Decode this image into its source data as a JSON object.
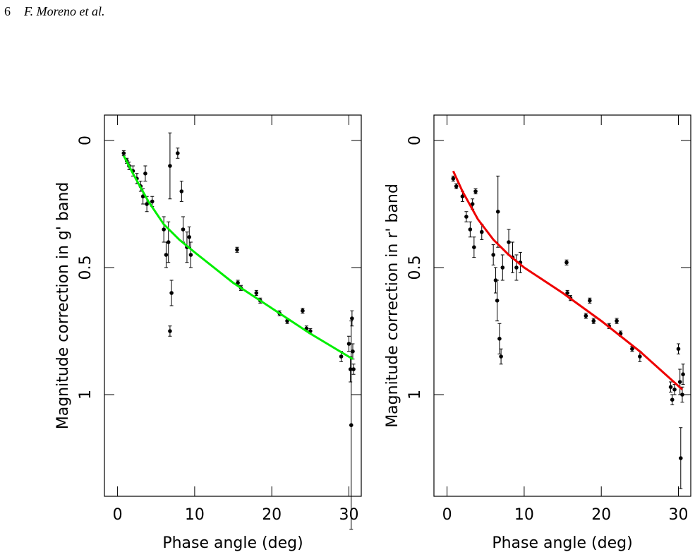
{
  "header": {
    "page_number": "6",
    "authors": "F. Moreno et al."
  },
  "chart_data": [
    {
      "type": "scatter",
      "xlabel": "Phase angle (deg)",
      "ylabel": "Magnitude correction in g' band",
      "xlim": [
        -1.7,
        31.6
      ],
      "ylim": [
        -0.1,
        1.4
      ],
      "y_inverted": true,
      "xticks": [
        0,
        10,
        20,
        30
      ],
      "yticks": [
        0,
        0.5,
        1
      ],
      "series": [
        {
          "style": "errorbar",
          "color": "#000000",
          "x": [
            0.8,
            1.2,
            1.5,
            2.0,
            2.5,
            3.0,
            3.3,
            3.6,
            3.8,
            4.5,
            6.0,
            6.3,
            6.6,
            6.8,
            7.0,
            6.8,
            7.8,
            8.3,
            8.5,
            9.0,
            9.3,
            9.5,
            15.5,
            15.6,
            16.0,
            18.0,
            18.5,
            21.0,
            22.0,
            24.0,
            24.5,
            25.0,
            29.0,
            30.0,
            30.2,
            30.3,
            30.5,
            30.6,
            30.4
          ],
          "values": [
            0.05,
            0.08,
            0.1,
            0.12,
            0.15,
            0.18,
            0.22,
            0.13,
            0.25,
            0.24,
            0.35,
            0.45,
            0.4,
            0.1,
            0.6,
            0.75,
            0.05,
            0.2,
            0.35,
            0.42,
            0.38,
            0.45,
            0.43,
            0.56,
            0.58,
            0.6,
            0.63,
            0.68,
            0.71,
            0.67,
            0.74,
            0.75,
            0.85,
            0.8,
            0.9,
            1.12,
            0.83,
            0.9,
            0.7
          ],
          "errors": [
            0.01,
            0.01,
            0.015,
            0.02,
            0.02,
            0.02,
            0.03,
            0.03,
            0.03,
            0.02,
            0.05,
            0.05,
            0.08,
            0.13,
            0.05,
            0.02,
            0.02,
            0.04,
            0.05,
            0.06,
            0.04,
            0.05,
            0.01,
            0.01,
            0.01,
            0.01,
            0.01,
            0.01,
            0.01,
            0.01,
            0.01,
            0.01,
            0.02,
            0.03,
            0.05,
            0.41,
            0.03,
            0.02,
            0.03
          ]
        },
        {
          "style": "line",
          "color": "#00ee00",
          "x": [
            0.8,
            2,
            4,
            6,
            8,
            10,
            15,
            20,
            25,
            30.5
          ],
          "values": [
            0.06,
            0.13,
            0.24,
            0.33,
            0.39,
            0.44,
            0.56,
            0.66,
            0.76,
            0.86
          ]
        }
      ]
    },
    {
      "type": "scatter",
      "xlabel": "Phase angle (deg)",
      "ylabel": "Magnitude correction in r' band",
      "xlim": [
        -1.7,
        31.6
      ],
      "ylim": [
        -0.1,
        1.4
      ],
      "y_inverted": true,
      "xticks": [
        0,
        10,
        20,
        30
      ],
      "yticks": [
        0,
        0.5,
        1
      ],
      "series": [
        {
          "style": "errorbar",
          "color": "#000000",
          "x": [
            0.8,
            1.2,
            2.0,
            2.5,
            3.0,
            3.3,
            3.5,
            3.7,
            4.5,
            6.0,
            6.3,
            6.5,
            6.6,
            6.8,
            7.0,
            7.2,
            8.0,
            8.5,
            9.0,
            9.5,
            15.5,
            15.6,
            16.0,
            18.0,
            18.5,
            19.0,
            21.0,
            22.0,
            22.5,
            24.0,
            25.0,
            29.0,
            29.2,
            29.5,
            30.0,
            30.2,
            30.3,
            30.5,
            30.6
          ],
          "values": [
            0.15,
            0.18,
            0.22,
            0.3,
            0.35,
            0.25,
            0.42,
            0.2,
            0.36,
            0.45,
            0.55,
            0.63,
            0.28,
            0.78,
            0.85,
            0.5,
            0.4,
            0.46,
            0.5,
            0.48,
            0.48,
            0.6,
            0.62,
            0.69,
            0.63,
            0.71,
            0.73,
            0.71,
            0.76,
            0.82,
            0.85,
            0.97,
            1.02,
            0.98,
            0.82,
            0.95,
            1.25,
            1.0,
            0.92
          ],
          "errors": [
            0.01,
            0.01,
            0.02,
            0.02,
            0.03,
            0.02,
            0.04,
            0.01,
            0.03,
            0.04,
            0.05,
            0.08,
            0.14,
            0.06,
            0.03,
            0.05,
            0.05,
            0.06,
            0.05,
            0.04,
            0.01,
            0.01,
            0.01,
            0.01,
            0.01,
            0.01,
            0.01,
            0.01,
            0.01,
            0.01,
            0.02,
            0.02,
            0.02,
            0.02,
            0.02,
            0.05,
            0.12,
            0.03,
            0.04
          ]
        },
        {
          "style": "line",
          "color": "#ee0000",
          "x": [
            0.8,
            2,
            4,
            6,
            8,
            10,
            15,
            20,
            25,
            30.5
          ],
          "values": [
            0.12,
            0.2,
            0.31,
            0.39,
            0.45,
            0.5,
            0.6,
            0.71,
            0.83,
            0.98
          ]
        }
      ]
    }
  ]
}
